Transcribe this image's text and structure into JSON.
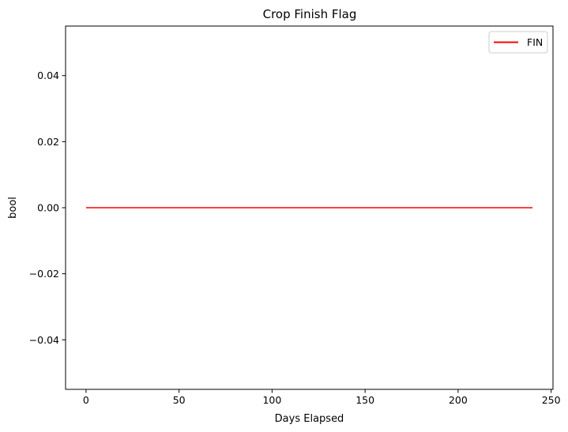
{
  "chart_data": {
    "type": "line",
    "title": "Crop Finish Flag",
    "xlabel": "Days Elapsed",
    "ylabel": "bool",
    "xlim": [
      -11,
      251
    ],
    "ylim": [
      -0.055,
      0.055
    ],
    "xticks": [
      0,
      50,
      100,
      150,
      200,
      250
    ],
    "xtick_labels": [
      "0",
      "50",
      "100",
      "150",
      "200",
      "250"
    ],
    "yticks": [
      -0.04,
      -0.02,
      0.0,
      0.02,
      0.04
    ],
    "ytick_labels": [
      "−0.04",
      "−0.02",
      "0.00",
      "0.02",
      "0.04"
    ],
    "grid": false,
    "legend_position": "top-right",
    "series": [
      {
        "name": "FIN",
        "color": "#ff0000",
        "x": [
          0,
          240
        ],
        "y": [
          0,
          0
        ]
      }
    ]
  }
}
